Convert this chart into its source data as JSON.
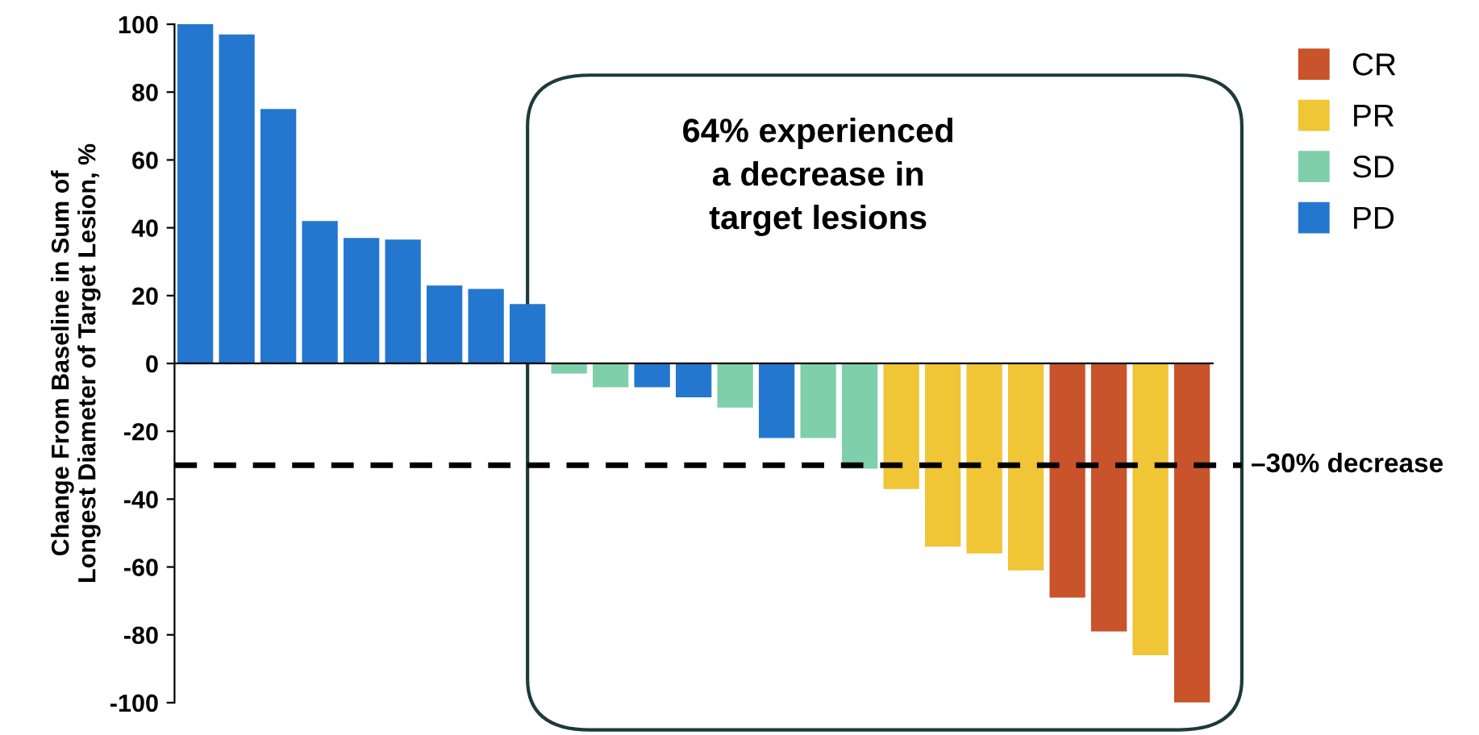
{
  "chart_data": {
    "type": "bar",
    "ylabel": "Change From Baseline in Sum of\nLongest Diameter of Target Lesion, %",
    "categories": [
      null,
      null,
      null,
      null,
      null,
      null,
      null,
      null,
      null,
      null,
      null,
      null,
      null,
      null,
      null,
      null,
      null,
      null,
      null,
      null,
      null,
      null,
      null,
      null,
      null
    ],
    "series": [
      {
        "name": "CR",
        "color": "#c9532a",
        "values": [
          null,
          null,
          null,
          null,
          null,
          null,
          null,
          null,
          null,
          null,
          null,
          null,
          null,
          null,
          null,
          null,
          null,
          null,
          null,
          null,
          null,
          -69,
          -79,
          null,
          -100
        ]
      },
      {
        "name": "PR",
        "color": "#f0c536",
        "values": [
          null,
          null,
          null,
          null,
          null,
          null,
          null,
          null,
          null,
          null,
          null,
          null,
          null,
          null,
          null,
          null,
          null,
          -37,
          -54,
          -56,
          -61,
          null,
          null,
          -86,
          null
        ]
      },
      {
        "name": "SD",
        "color": "#7fcfaa",
        "values": [
          null,
          null,
          null,
          null,
          null,
          null,
          null,
          null,
          null,
          -3,
          -7,
          null,
          null,
          -13,
          null,
          -22,
          -31,
          null,
          null,
          null,
          null,
          null,
          null,
          null,
          null
        ]
      },
      {
        "name": "PD",
        "color": "#2477cf",
        "values": [
          100,
          97,
          75,
          42,
          37,
          36.5,
          23,
          22,
          17.5,
          null,
          null,
          -7,
          -10,
          null,
          -22,
          null,
          null,
          null,
          null,
          null,
          null,
          null,
          null,
          null,
          null
        ]
      }
    ],
    "ylim": [
      -100,
      100
    ],
    "yticks": [
      -100,
      -80,
      -60,
      -40,
      -20,
      0,
      20,
      40,
      60,
      80,
      100
    ],
    "ref_lines": [
      {
        "axis": "y",
        "value": -30,
        "label": "–30% decrease",
        "color": "#000000",
        "line_style": "dashed"
      }
    ],
    "annotations": [
      "64% experienced\na decrease in\ntarget lesions"
    ],
    "legend": "top right"
  }
}
